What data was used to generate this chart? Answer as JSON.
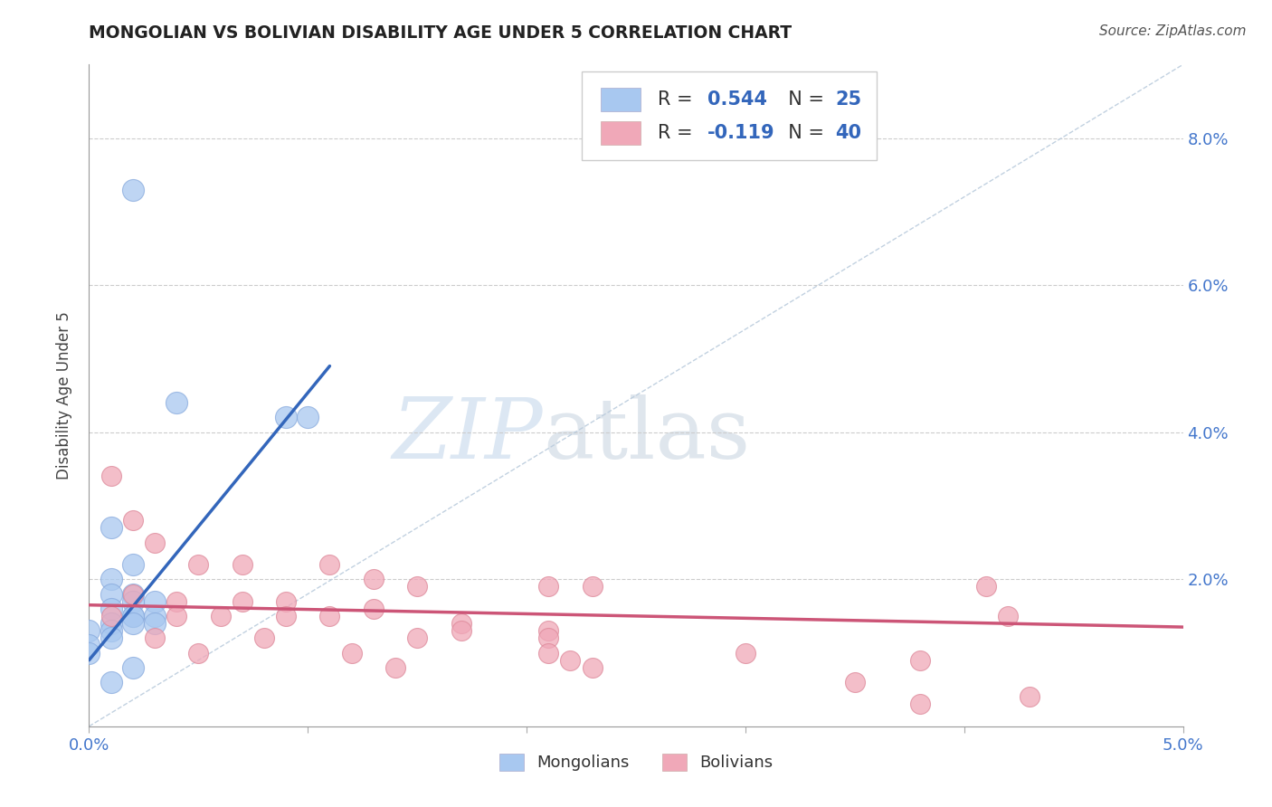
{
  "title": "MONGOLIAN VS BOLIVIAN DISABILITY AGE UNDER 5 CORRELATION CHART",
  "source": "Source: ZipAtlas.com",
  "ylabel": "Disability Age Under 5",
  "xlim": [
    0.0,
    0.05
  ],
  "ylim": [
    0.0,
    0.09
  ],
  "xtick_positions": [
    0.0,
    0.01,
    0.02,
    0.03,
    0.04,
    0.05
  ],
  "xtick_labels": [
    "0.0%",
    "",
    "",
    "",
    "",
    "5.0%"
  ],
  "ytick_positions": [
    0.0,
    0.02,
    0.04,
    0.06,
    0.08
  ],
  "ytick_labels": [
    "",
    "2.0%",
    "4.0%",
    "6.0%",
    "8.0%"
  ],
  "mongolian_R": 0.544,
  "mongolian_N": 25,
  "bolivian_R": -0.119,
  "bolivian_N": 40,
  "mongolian_color": "#a8c8f0",
  "bolivian_color": "#f0a8b8",
  "mongolian_line_color": "#3366bb",
  "bolivian_line_color": "#cc5577",
  "diagonal_color": "#bbccdd",
  "background_color": "#ffffff",
  "watermark_zip": "ZIP",
  "watermark_atlas": "atlas",
  "mongolian_points": [
    [
      0.002,
      0.073
    ],
    [
      0.004,
      0.044
    ],
    [
      0.009,
      0.042
    ],
    [
      0.01,
      0.042
    ],
    [
      0.001,
      0.027
    ],
    [
      0.002,
      0.022
    ],
    [
      0.001,
      0.02
    ],
    [
      0.001,
      0.018
    ],
    [
      0.002,
      0.018
    ],
    [
      0.002,
      0.017
    ],
    [
      0.003,
      0.017
    ],
    [
      0.001,
      0.016
    ],
    [
      0.002,
      0.015
    ],
    [
      0.002,
      0.015
    ],
    [
      0.003,
      0.015
    ],
    [
      0.003,
      0.014
    ],
    [
      0.001,
      0.014
    ],
    [
      0.002,
      0.014
    ],
    [
      0.0,
      0.013
    ],
    [
      0.001,
      0.013
    ],
    [
      0.001,
      0.012
    ],
    [
      0.0,
      0.011
    ],
    [
      0.0,
      0.01
    ],
    [
      0.002,
      0.008
    ],
    [
      0.001,
      0.006
    ]
  ],
  "bolivian_points": [
    [
      0.001,
      0.034
    ],
    [
      0.002,
      0.028
    ],
    [
      0.003,
      0.025
    ],
    [
      0.005,
      0.022
    ],
    [
      0.007,
      0.022
    ],
    [
      0.011,
      0.022
    ],
    [
      0.013,
      0.02
    ],
    [
      0.015,
      0.019
    ],
    [
      0.021,
      0.019
    ],
    [
      0.023,
      0.019
    ],
    [
      0.002,
      0.018
    ],
    [
      0.004,
      0.017
    ],
    [
      0.007,
      0.017
    ],
    [
      0.009,
      0.017
    ],
    [
      0.013,
      0.016
    ],
    [
      0.001,
      0.015
    ],
    [
      0.004,
      0.015
    ],
    [
      0.006,
      0.015
    ],
    [
      0.009,
      0.015
    ],
    [
      0.011,
      0.015
    ],
    [
      0.017,
      0.014
    ],
    [
      0.021,
      0.013
    ],
    [
      0.017,
      0.013
    ],
    [
      0.003,
      0.012
    ],
    [
      0.008,
      0.012
    ],
    [
      0.015,
      0.012
    ],
    [
      0.021,
      0.012
    ],
    [
      0.005,
      0.01
    ],
    [
      0.012,
      0.01
    ],
    [
      0.021,
      0.01
    ],
    [
      0.03,
      0.01
    ],
    [
      0.014,
      0.008
    ],
    [
      0.022,
      0.009
    ],
    [
      0.023,
      0.008
    ],
    [
      0.038,
      0.009
    ],
    [
      0.041,
      0.019
    ],
    [
      0.042,
      0.015
    ],
    [
      0.035,
      0.006
    ],
    [
      0.043,
      0.004
    ],
    [
      0.038,
      0.003
    ]
  ],
  "mong_line_x0": 0.0,
  "mong_line_y0": 0.009,
  "mong_line_x1": 0.011,
  "mong_line_y1": 0.049,
  "boliv_line_x0": 0.0,
  "boliv_line_y0": 0.0165,
  "boliv_line_x1": 0.05,
  "boliv_line_y1": 0.0135
}
